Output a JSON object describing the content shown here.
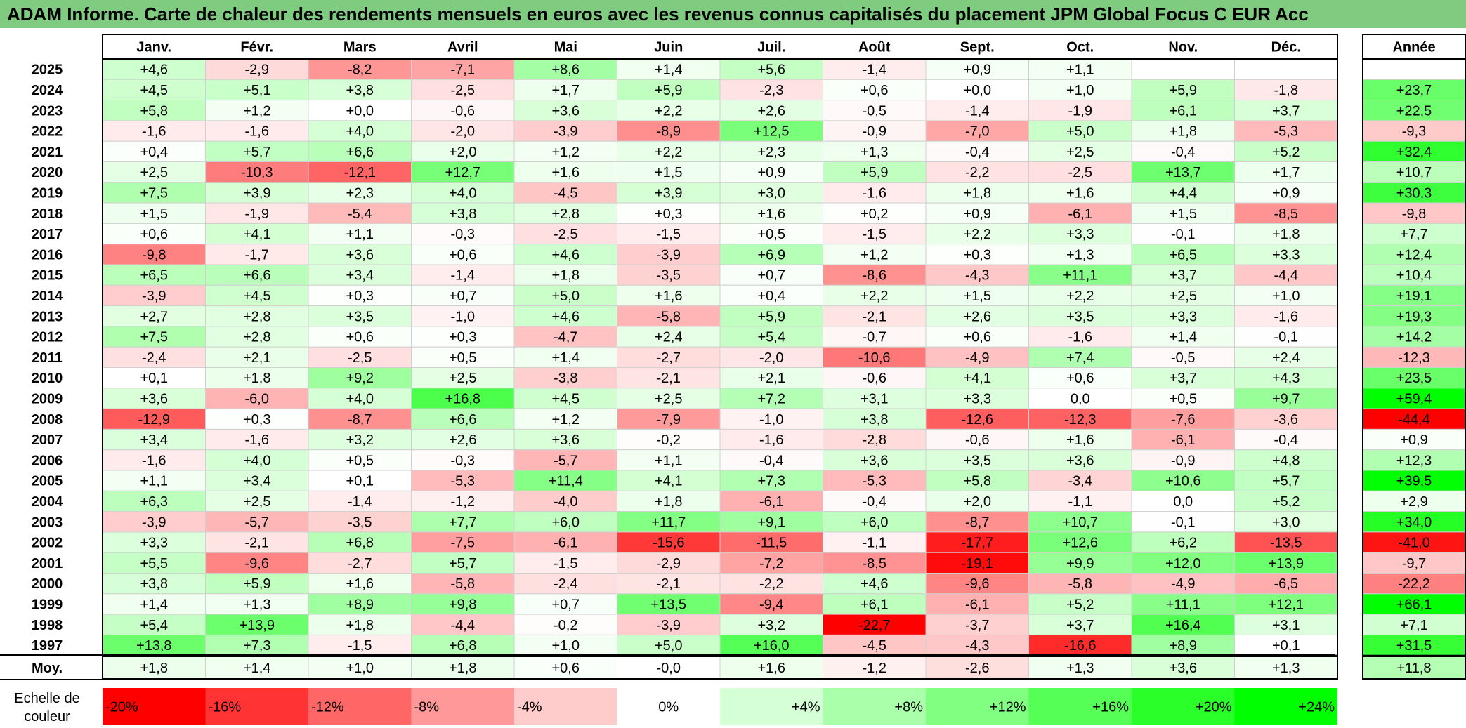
{
  "title": "ADAM Informe. Carte de chaleur des rendements mensuels en euros avec les revenus connus capitalisés du placement JPM Global Focus C EUR Acc",
  "colors": {
    "title_bg": "#7fcb7f",
    "negative_max": "#ff0000",
    "neutral": "#ffffff",
    "positive_max": "#00ff00"
  },
  "chart_data": {
    "type": "heatmap",
    "title": "ADAM Informe. Carte de chaleur des rendements mensuels en euros avec les revenus connus capitalisés du placement JPM Global Focus C EUR Acc",
    "columns": [
      "Janv.",
      "Févr.",
      "Mars",
      "Avril",
      "Mai",
      "Juin",
      "Juil.",
      "Août",
      "Sept.",
      "Oct.",
      "Nov.",
      "Déc."
    ],
    "annual_label": "Année",
    "rows": [
      {
        "year": "2025",
        "values": [
          "+4,6",
          "-2,9",
          "-8,2",
          "-7,1",
          "+8,6",
          "+1,4",
          "+5,6",
          "-1,4",
          "+0,9",
          "+1,1",
          "",
          ""
        ],
        "annual": ""
      },
      {
        "year": "2024",
        "values": [
          "+4,5",
          "+5,1",
          "+3,8",
          "-2,5",
          "+1,7",
          "+5,9",
          "-2,3",
          "+0,6",
          "+0,0",
          "+1,0",
          "+5,9",
          "-1,8"
        ],
        "annual": "+23,7"
      },
      {
        "year": "2023",
        "values": [
          "+5,8",
          "+1,2",
          "+0,0",
          "-0,6",
          "+3,6",
          "+2,2",
          "+2,6",
          "-0,5",
          "-1,4",
          "-1,9",
          "+6,1",
          "+3,7"
        ],
        "annual": "+22,5"
      },
      {
        "year": "2022",
        "values": [
          "-1,6",
          "-1,6",
          "+4,0",
          "-2,0",
          "-3,9",
          "-8,9",
          "+12,5",
          "-0,9",
          "-7,0",
          "+5,0",
          "+1,8",
          "-5,3"
        ],
        "annual": "-9,3"
      },
      {
        "year": "2021",
        "values": [
          "+0,4",
          "+5,7",
          "+6,6",
          "+2,0",
          "+1,2",
          "+2,2",
          "+2,3",
          "+1,3",
          "-0,4",
          "+2,5",
          "-0,4",
          "+5,2"
        ],
        "annual": "+32,4"
      },
      {
        "year": "2020",
        "values": [
          "+2,5",
          "-10,3",
          "-12,1",
          "+12,7",
          "+1,6",
          "+1,5",
          "+0,9",
          "+5,9",
          "-2,2",
          "-2,5",
          "+13,7",
          "+1,7"
        ],
        "annual": "+10,7"
      },
      {
        "year": "2019",
        "values": [
          "+7,5",
          "+3,9",
          "+2,3",
          "+4,0",
          "-4,5",
          "+3,9",
          "+3,0",
          "-1,6",
          "+1,8",
          "+1,6",
          "+4,4",
          "+0,9"
        ],
        "annual": "+30,3"
      },
      {
        "year": "2018",
        "values": [
          "+1,5",
          "-1,9",
          "-5,4",
          "+3,8",
          "+2,8",
          "+0,3",
          "+1,6",
          "+0,2",
          "+0,9",
          "-6,1",
          "+1,5",
          "-8,5"
        ],
        "annual": "-9,8"
      },
      {
        "year": "2017",
        "values": [
          "+0,6",
          "+4,1",
          "+1,1",
          "-0,3",
          "-2,5",
          "-1,5",
          "+0,5",
          "-1,5",
          "+2,2",
          "+3,3",
          "-0,1",
          "+1,8"
        ],
        "annual": "+7,7"
      },
      {
        "year": "2016",
        "values": [
          "-9,8",
          "-1,7",
          "+3,6",
          "+0,6",
          "+4,6",
          "-3,9",
          "+6,9",
          "+1,2",
          "+0,3",
          "+1,3",
          "+6,5",
          "+3,3"
        ],
        "annual": "+12,4"
      },
      {
        "year": "2015",
        "values": [
          "+6,5",
          "+6,6",
          "+3,4",
          "-1,4",
          "+1,8",
          "-3,5",
          "+0,7",
          "-8,6",
          "-4,3",
          "+11,1",
          "+3,7",
          "-4,4"
        ],
        "annual": "+10,4"
      },
      {
        "year": "2014",
        "values": [
          "-3,9",
          "+4,5",
          "+0,3",
          "+0,7",
          "+5,0",
          "+1,6",
          "+0,4",
          "+2,2",
          "+1,5",
          "+2,2",
          "+2,5",
          "+1,0"
        ],
        "annual": "+19,1"
      },
      {
        "year": "2013",
        "values": [
          "+2,7",
          "+2,8",
          "+3,5",
          "-1,0",
          "+4,6",
          "-5,8",
          "+5,9",
          "-2,1",
          "+2,6",
          "+3,5",
          "+3,3",
          "-1,6"
        ],
        "annual": "+19,3"
      },
      {
        "year": "2012",
        "values": [
          "+7,5",
          "+2,8",
          "+0,6",
          "+0,3",
          "-4,7",
          "+2,4",
          "+5,4",
          "-0,7",
          "+0,6",
          "-1,6",
          "+1,4",
          "-0,1"
        ],
        "annual": "+14,2"
      },
      {
        "year": "2011",
        "values": [
          "-2,4",
          "+2,1",
          "-2,5",
          "+0,5",
          "+1,4",
          "-2,7",
          "-2,0",
          "-10,6",
          "-4,9",
          "+7,4",
          "-0,5",
          "+2,4"
        ],
        "annual": "-12,3"
      },
      {
        "year": "2010",
        "values": [
          "+0,1",
          "+1,8",
          "+9,2",
          "+2,5",
          "-3,8",
          "-2,1",
          "+2,1",
          "-0,6",
          "+4,1",
          "+0,6",
          "+3,7",
          "+4,3"
        ],
        "annual": "+23,5"
      },
      {
        "year": "2009",
        "values": [
          "+3,6",
          "-6,0",
          "+4,0",
          "+16,8",
          "+4,5",
          "+2,5",
          "+7,2",
          "+3,1",
          "+3,3",
          "0,0",
          "+0,5",
          "+9,7"
        ],
        "annual": "+59,4"
      },
      {
        "year": "2008",
        "values": [
          "-12,9",
          "+0,3",
          "-8,7",
          "+6,6",
          "+1,2",
          "-7,9",
          "-1,0",
          "+3,8",
          "-12,6",
          "-12,3",
          "-7,6",
          "-3,6"
        ],
        "annual": "-44,4"
      },
      {
        "year": "2007",
        "values": [
          "+3,4",
          "-1,6",
          "+3,2",
          "+2,6",
          "+3,6",
          "-0,2",
          "-1,6",
          "-2,8",
          "-0,6",
          "+1,6",
          "-6,1",
          "-0,4"
        ],
        "annual": "+0,9"
      },
      {
        "year": "2006",
        "values": [
          "-1,6",
          "+4,0",
          "+0,5",
          "-0,3",
          "-5,7",
          "+1,1",
          "-0,4",
          "+3,6",
          "+3,5",
          "+3,6",
          "-0,9",
          "+4,8"
        ],
        "annual": "+12,3"
      },
      {
        "year": "2005",
        "values": [
          "+1,1",
          "+3,4",
          "+0,1",
          "-5,3",
          "+11,4",
          "+4,1",
          "+7,3",
          "-5,3",
          "+5,8",
          "-3,4",
          "+10,6",
          "+5,7"
        ],
        "annual": "+39,5"
      },
      {
        "year": "2004",
        "values": [
          "+6,3",
          "+2,5",
          "-1,4",
          "-1,2",
          "-4,0",
          "+1,8",
          "-6,1",
          "-0,4",
          "+2,0",
          "-1,1",
          "0,0",
          "+5,2"
        ],
        "annual": "+2,9"
      },
      {
        "year": "2003",
        "values": [
          "-3,9",
          "-5,7",
          "-3,5",
          "+7,7",
          "+6,0",
          "+11,7",
          "+9,1",
          "+6,0",
          "-8,7",
          "+10,7",
          "-0,1",
          "+3,0"
        ],
        "annual": "+34,0"
      },
      {
        "year": "2002",
        "values": [
          "+3,3",
          "-2,1",
          "+6,8",
          "-7,5",
          "-6,1",
          "-15,6",
          "-11,5",
          "-1,1",
          "-17,7",
          "+12,6",
          "+6,2",
          "-13,5"
        ],
        "annual": "-41,0"
      },
      {
        "year": "2001",
        "values": [
          "+5,5",
          "-9,6",
          "-2,7",
          "+5,7",
          "-1,5",
          "-2,9",
          "-7,2",
          "-8,5",
          "-19,1",
          "+9,9",
          "+12,0",
          "+13,9"
        ],
        "annual": "-9,7"
      },
      {
        "year": "2000",
        "values": [
          "+3,8",
          "+5,9",
          "+1,6",
          "-5,8",
          "-2,4",
          "-2,1",
          "-2,2",
          "+4,6",
          "-9,6",
          "-5,8",
          "-4,9",
          "-6,5"
        ],
        "annual": "-22,2"
      },
      {
        "year": "1999",
        "values": [
          "+1,4",
          "+1,3",
          "+8,9",
          "+9,8",
          "+0,7",
          "+13,5",
          "-9,4",
          "+6,1",
          "-6,1",
          "+5,2",
          "+11,1",
          "+12,1"
        ],
        "annual": "+66,1"
      },
      {
        "year": "1998",
        "values": [
          "+5,4",
          "+13,9",
          "+1,8",
          "-4,4",
          "-0,2",
          "-3,9",
          "+3,2",
          "-22,7",
          "-3,7",
          "+3,7",
          "+16,4",
          "+3,1"
        ],
        "annual": "+7,1"
      },
      {
        "year": "1997",
        "values": [
          "+13,8",
          "+7,3",
          "-1,5",
          "+6,8",
          "+1,0",
          "+5,0",
          "+16,0",
          "-4,5",
          "-4,3",
          "-16,6",
          "+8,9",
          "+0,1"
        ],
        "annual": "+31,5"
      }
    ],
    "average": {
      "label": "Moy.",
      "values": [
        "+1,8",
        "+1,4",
        "+1,0",
        "+1,8",
        "+0,6",
        "-0,0",
        "+1,6",
        "-1,2",
        "-2,6",
        "+1,3",
        "+3,6",
        "+1,3"
      ],
      "annual": "+11,8"
    },
    "legend": {
      "label_line1": "Echelle de",
      "label_line2": "couleur",
      "items": [
        "-20%",
        "-16%",
        "-12%",
        "-8%",
        "-4%",
        "0%",
        "+4%",
        "+8%",
        "+12%",
        "+16%",
        "+20%",
        "+24%"
      ],
      "stops": [
        -20,
        -16,
        -12,
        -8,
        -4,
        0,
        4,
        8,
        12,
        16,
        20,
        24
      ]
    }
  }
}
